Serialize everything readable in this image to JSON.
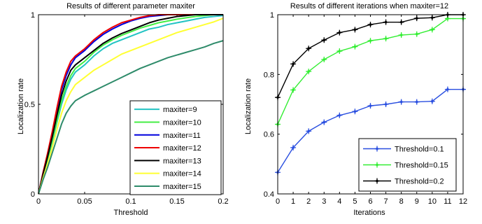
{
  "chart_data": [
    {
      "type": "line",
      "title": "Results of different parameter maxiter",
      "xlabel": "Threshold",
      "ylabel": "Localization rate",
      "xlim": [
        0,
        0.2
      ],
      "ylim": [
        0,
        1
      ],
      "xticks": [
        0,
        0.05,
        0.1,
        0.15,
        0.2
      ],
      "xtick_labels": [
        "0",
        "0.05",
        "0.1",
        "0.15",
        "0.2"
      ],
      "yticks": [
        0,
        0.5,
        1
      ],
      "ytick_labels": [
        "0",
        "0.5",
        "1"
      ],
      "grid": false,
      "legend_position": "bottom-right",
      "x": [
        0,
        0.005,
        0.01,
        0.015,
        0.02,
        0.025,
        0.03,
        0.035,
        0.04,
        0.045,
        0.05,
        0.06,
        0.07,
        0.08,
        0.09,
        0.1,
        0.11,
        0.12,
        0.13,
        0.14,
        0.15,
        0.16,
        0.17,
        0.18,
        0.19,
        0.2
      ],
      "series": [
        {
          "name": "maxiter=9",
          "color": "#22c3c3",
          "values": [
            0,
            0.1,
            0.19,
            0.29,
            0.4,
            0.5,
            0.58,
            0.64,
            0.68,
            0.7,
            0.72,
            0.77,
            0.81,
            0.84,
            0.86,
            0.88,
            0.9,
            0.92,
            0.93,
            0.945,
            0.955,
            0.965,
            0.975,
            0.985,
            0.99,
            0.995
          ]
        },
        {
          "name": "maxiter=10",
          "color": "#44ee44",
          "values": [
            0,
            0.11,
            0.2,
            0.3,
            0.41,
            0.52,
            0.6,
            0.66,
            0.7,
            0.72,
            0.74,
            0.79,
            0.83,
            0.86,
            0.885,
            0.905,
            0.925,
            0.94,
            0.955,
            0.965,
            0.975,
            0.983,
            0.99,
            0.995,
            1.0,
            1.0
          ]
        },
        {
          "name": "maxiter=11",
          "color": "#0000dd",
          "values": [
            0,
            0.12,
            0.22,
            0.34,
            0.46,
            0.58,
            0.66,
            0.72,
            0.76,
            0.78,
            0.8,
            0.85,
            0.89,
            0.92,
            0.945,
            0.965,
            0.98,
            0.99,
            0.995,
            1.0,
            1.0,
            1.0,
            1.0,
            1.0,
            1.0,
            1.0
          ]
        },
        {
          "name": "maxiter=12",
          "color": "#ee0000",
          "values": [
            0,
            0.12,
            0.23,
            0.35,
            0.48,
            0.6,
            0.68,
            0.74,
            0.77,
            0.79,
            0.81,
            0.86,
            0.9,
            0.93,
            0.955,
            0.97,
            0.985,
            0.995,
            1.0,
            1.0,
            1.0,
            1.0,
            1.0,
            1.0,
            1.0,
            1.0
          ]
        },
        {
          "name": "maxiter=13",
          "color": "#000000",
          "values": [
            0,
            0.11,
            0.21,
            0.32,
            0.44,
            0.55,
            0.63,
            0.69,
            0.72,
            0.74,
            0.76,
            0.8,
            0.84,
            0.87,
            0.895,
            0.915,
            0.935,
            0.955,
            0.97,
            0.98,
            0.99,
            0.995,
            1.0,
            1.0,
            1.0,
            1.0
          ]
        },
        {
          "name": "maxiter=14",
          "color": "#ffff33",
          "values": [
            0,
            0.09,
            0.17,
            0.26,
            0.36,
            0.45,
            0.52,
            0.57,
            0.61,
            0.63,
            0.65,
            0.69,
            0.72,
            0.75,
            0.78,
            0.8,
            0.82,
            0.84,
            0.86,
            0.88,
            0.9,
            0.915,
            0.93,
            0.945,
            0.96,
            0.98
          ]
        },
        {
          "name": "maxiter=15",
          "color": "#2e8b6a",
          "values": [
            0,
            0.08,
            0.15,
            0.23,
            0.31,
            0.39,
            0.45,
            0.49,
            0.52,
            0.535,
            0.55,
            0.575,
            0.6,
            0.625,
            0.65,
            0.675,
            0.7,
            0.72,
            0.74,
            0.76,
            0.775,
            0.79,
            0.805,
            0.82,
            0.84,
            0.855
          ]
        }
      ]
    },
    {
      "type": "line",
      "title": "Results of different iterations when maxiter=12",
      "xlabel": "Iterations",
      "ylabel": "Localization rate",
      "xlim": [
        0,
        12
      ],
      "ylim": [
        0.4,
        1
      ],
      "xticks": [
        0,
        1,
        2,
        3,
        4,
        5,
        6,
        7,
        8,
        9,
        10,
        11,
        12
      ],
      "xtick_labels": [
        "0",
        "1",
        "2",
        "3",
        "4",
        "5",
        "6",
        "7",
        "8",
        "9",
        "10",
        "11",
        "12"
      ],
      "yticks": [
        0.4,
        0.6,
        0.8,
        1
      ],
      "ytick_labels": [
        "0.4",
        "0.6",
        "0.8",
        "1"
      ],
      "grid": false,
      "legend_position": "bottom-right",
      "x": [
        0,
        1,
        2,
        3,
        4,
        5,
        6,
        7,
        8,
        9,
        10,
        11,
        12
      ],
      "series": [
        {
          "name": "Threshold=0.1",
          "color": "#2a4fe0",
          "values": [
            0.472,
            0.555,
            0.61,
            0.64,
            0.663,
            0.676,
            0.695,
            0.7,
            0.708,
            0.708,
            0.71,
            0.75,
            0.75
          ]
        },
        {
          "name": "Threshold=0.15",
          "color": "#33ee33",
          "values": [
            0.633,
            0.748,
            0.81,
            0.85,
            0.878,
            0.893,
            0.913,
            0.92,
            0.932,
            0.935,
            0.95,
            0.987,
            0.987
          ]
        },
        {
          "name": "Threshold=0.2",
          "color": "#000000",
          "values": [
            0.723,
            0.835,
            0.887,
            0.915,
            0.94,
            0.95,
            0.967,
            0.975,
            0.975,
            0.988,
            0.99,
            1.0,
            1.0
          ]
        }
      ]
    }
  ]
}
